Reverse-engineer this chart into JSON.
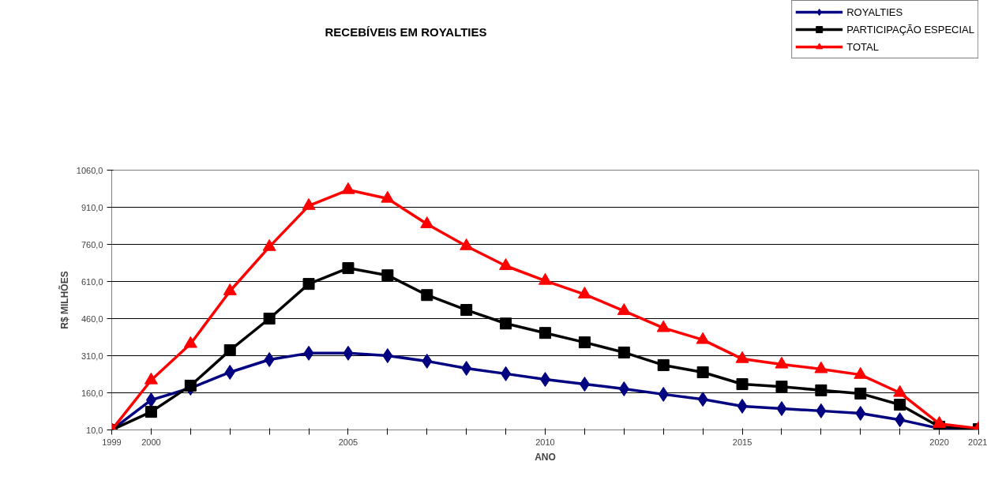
{
  "chart_data": {
    "type": "line",
    "title": "RECEBÍVEIS EM ROYALTIES",
    "xlabel": "ANO",
    "ylabel": "R$ MILHÕES",
    "x": [
      1999,
      2000,
      2001,
      2002,
      2003,
      2004,
      2005,
      2006,
      2007,
      2008,
      2009,
      2010,
      2011,
      2012,
      2013,
      2014,
      2015,
      2016,
      2017,
      2018,
      2019,
      2020,
      2021
    ],
    "series": [
      {
        "name": "ROYALTIES",
        "color": "#000080",
        "marker": "diamond",
        "values": [
          10,
          131,
          179,
          243,
          294,
          320,
          320,
          310,
          288,
          259,
          237,
          214,
          195,
          176,
          154,
          134,
          106,
          96,
          87,
          77,
          51,
          16,
          10
        ]
      },
      {
        "name": "PARTICIPAÇÃO ESPECIAL",
        "color": "#000000",
        "marker": "square",
        "values": [
          10,
          83,
          189,
          332,
          460,
          600,
          664,
          635,
          555,
          495,
          440,
          402,
          364,
          323,
          272,
          243,
          195,
          185,
          170,
          157,
          112,
          23,
          13
        ]
      },
      {
        "name": "TOTAL",
        "color": "#ff0000",
        "marker": "triangle",
        "values": [
          10,
          211,
          358,
          571,
          750,
          916,
          980,
          945,
          842,
          753,
          673,
          613,
          558,
          491,
          422,
          374,
          297,
          275,
          256,
          233,
          160,
          35,
          16
        ]
      }
    ],
    "xlim": [
      1999,
      2021
    ],
    "xticks": [
      1999,
      2000,
      {
        "value": 2001,
        "label": null
      },
      {
        "value": 2002,
        "label": null
      },
      {
        "value": 2003,
        "label": null
      },
      {
        "value": 2004,
        "label": null
      },
      2005,
      {
        "value": 2006,
        "label": null
      },
      {
        "value": 2007,
        "label": null
      },
      {
        "value": 2008,
        "label": null
      },
      {
        "value": 2009,
        "label": null
      },
      2010,
      {
        "value": 2011,
        "label": null
      },
      {
        "value": 2012,
        "label": null
      },
      {
        "value": 2013,
        "label": null
      },
      {
        "value": 2014,
        "label": null
      },
      2015,
      {
        "value": 2016,
        "label": null
      },
      {
        "value": 2017,
        "label": null
      },
      {
        "value": 2018,
        "label": null
      },
      {
        "value": 2019,
        "label": null
      },
      2020,
      2021
    ],
    "ylim": [
      10,
      1060
    ],
    "yticks": [
      {
        "value": 10,
        "label": "10,0"
      },
      {
        "value": 160,
        "label": "160,0"
      },
      {
        "value": 310,
        "label": "310,0"
      },
      {
        "value": 460,
        "label": "460,0"
      },
      {
        "value": 610,
        "label": "610,0"
      },
      {
        "value": 760,
        "label": "760,0"
      },
      {
        "value": 910,
        "label": "910,0"
      },
      {
        "value": 1060,
        "label": "1060,0"
      }
    ],
    "grid": "y",
    "legend": "top right",
    "line_style": "solid"
  }
}
